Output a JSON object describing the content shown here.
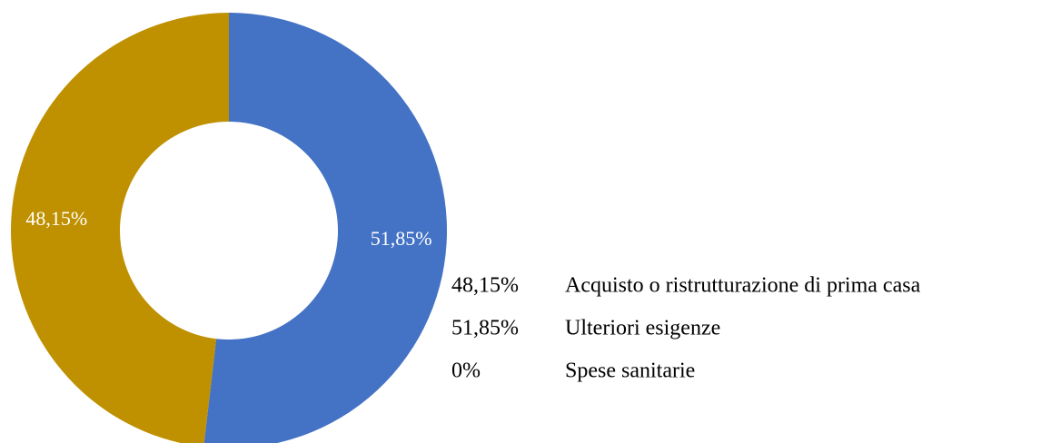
{
  "chart_data": {
    "type": "donut",
    "categories": [
      "Acquisto o ristrutturazione di prima casa",
      "Ulteriori esigenze",
      "Spese sanitarie"
    ],
    "values": [
      48.15,
      51.85,
      0
    ],
    "value_labels": [
      "48,15%",
      "51,85%",
      "0%"
    ],
    "colors": [
      "#BF9000",
      "#4472C4",
      "#A5A5A5"
    ],
    "legend": "right"
  }
}
